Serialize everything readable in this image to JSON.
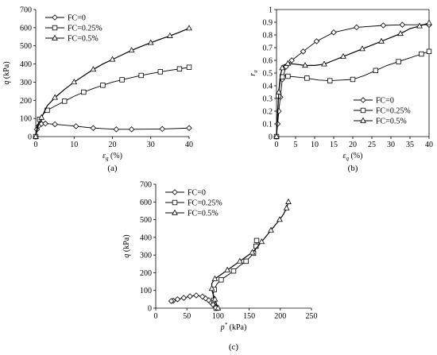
{
  "chart_data": [
    {
      "type": "line",
      "panel_label": "(a)",
      "xlabel_sym": "ε",
      "xlabel_sub": "q",
      "xlabel_unit": " (%)",
      "ylabel_sym": "q",
      "ylabel_unit": " (kPa)",
      "xlim": [
        0,
        40
      ],
      "ylim": [
        0,
        700
      ],
      "xticks": [
        "0",
        "10",
        "20",
        "30",
        "40"
      ],
      "yticks": [
        "0",
        "100",
        "200",
        "300",
        "400",
        "500",
        "600",
        "700"
      ],
      "grid": false,
      "legend_position": "top-left",
      "series": [
        {
          "name": "FC=0",
          "marker": "diamond",
          "x": [
            0,
            0.3,
            0.8,
            1.5,
            2.5,
            5,
            10.5,
            15,
            21,
            25,
            33,
            40
          ],
          "y": [
            0,
            40,
            60,
            70,
            72,
            68,
            57,
            47,
            40,
            40,
            42,
            47
          ]
        },
        {
          "name": "FC=0.25%",
          "marker": "square",
          "x": [
            0,
            0.3,
            1,
            2,
            3,
            5,
            7.5,
            10,
            12.5,
            15,
            17.5,
            20,
            22.5,
            25,
            27.5,
            30,
            32.5,
            35,
            37.5,
            40
          ],
          "y": [
            0,
            50,
            95,
            125,
            145,
            168,
            195,
            222,
            245,
            265,
            283,
            300,
            313,
            325,
            337,
            347,
            357,
            365,
            373,
            382
          ]
        },
        {
          "name": "FC=0.5%",
          "marker": "triangle",
          "x": [
            0,
            0.5,
            1.5,
            3,
            5,
            7.5,
            10,
            12.5,
            15,
            17.5,
            20,
            22.5,
            25,
            27.5,
            30,
            32.5,
            35,
            37.5,
            40
          ],
          "y": [
            0,
            50,
            105,
            170,
            215,
            260,
            300,
            335,
            370,
            400,
            425,
            450,
            475,
            497,
            517,
            537,
            555,
            575,
            597
          ]
        }
      ]
    },
    {
      "type": "line",
      "panel_label": "(b)",
      "xlabel_sym": "ε",
      "xlabel_sub": "q",
      "xlabel_unit": " (%)",
      "ylabel_sym": "r",
      "ylabel_sub": "u",
      "xlim": [
        0,
        40
      ],
      "ylim": [
        0,
        1
      ],
      "xticks": [
        "0",
        "5",
        "10",
        "15",
        "20",
        "25",
        "30",
        "35",
        "40"
      ],
      "yticks": [
        "0",
        "0.1",
        "0.2",
        "0.3",
        "0.4",
        "0.5",
        "0.6",
        "0.7",
        "0.8",
        "0.9",
        "1"
      ],
      "grid": false,
      "legend_position": "bottom-right",
      "series": [
        {
          "name": "FC=0",
          "marker": "diamond",
          "x": [
            0,
            0.3,
            0.6,
            1,
            1.5,
            2.5,
            4,
            7,
            10.5,
            15,
            21,
            28,
            33,
            40
          ],
          "y": [
            0,
            0.1,
            0.2,
            0.31,
            0.45,
            0.55,
            0.6,
            0.67,
            0.75,
            0.82,
            0.86,
            0.875,
            0.88,
            0.88
          ]
        },
        {
          "name": "FC=0.25%",
          "marker": "square",
          "x": [
            0,
            0.2,
            0.5,
            1,
            1.5,
            2,
            3,
            5,
            8,
            11,
            14,
            17,
            20,
            23,
            26,
            29,
            32,
            35,
            38,
            40
          ],
          "y": [
            0,
            0.13,
            0.32,
            0.44,
            0.47,
            0.48,
            0.475,
            0.47,
            0.46,
            0.445,
            0.44,
            0.445,
            0.45,
            0.48,
            0.52,
            0.56,
            0.59,
            0.62,
            0.65,
            0.67
          ]
        },
        {
          "name": "FC=0.5%",
          "marker": "triangle",
          "x": [
            0,
            0.3,
            0.6,
            1,
            1.5,
            2,
            3,
            5,
            7.5,
            10,
            12.5,
            15,
            17.5,
            20,
            22.5,
            25,
            27.5,
            30,
            32.5,
            35,
            37.5,
            40
          ],
          "y": [
            0,
            0.18,
            0.35,
            0.48,
            0.54,
            0.565,
            0.575,
            0.57,
            0.56,
            0.56,
            0.57,
            0.6,
            0.63,
            0.66,
            0.69,
            0.72,
            0.75,
            0.78,
            0.81,
            0.85,
            0.87,
            0.895
          ]
        }
      ]
    },
    {
      "type": "line",
      "panel_label": "(c)",
      "xlabel_sym": "p",
      "xlabel_sup": "*",
      "xlabel_unit": " (kPa)",
      "ylabel_sym": "q",
      "ylabel_unit": " (kPa)",
      "xlim": [
        0,
        250
      ],
      "ylim": [
        0,
        700
      ],
      "xticks": [
        "0",
        "50",
        "100",
        "150",
        "200",
        "250"
      ],
      "yticks": [
        "0",
        "100",
        "200",
        "300",
        "400",
        "500",
        "600",
        "700"
      ],
      "grid": false,
      "legend_position": "top-left",
      "series": [
        {
          "name": "FC=0",
          "marker": "diamond",
          "x": [
            97,
            95,
            92,
            88,
            85,
            80,
            75,
            65,
            55,
            45,
            35,
            28,
            25
          ],
          "y": [
            0,
            10,
            20,
            35,
            45,
            55,
            65,
            72,
            67,
            58,
            50,
            42,
            40
          ]
        },
        {
          "name": "FC=0.25%",
          "marker": "square",
          "x": [
            97,
            95,
            93,
            92,
            94,
            98,
            105,
            115,
            125,
            135,
            145,
            152,
            157,
            160,
            161,
            162,
            162
          ],
          "y": [
            0,
            20,
            45,
            75,
            105,
            135,
            160,
            185,
            210,
            240,
            265,
            290,
            310,
            330,
            350,
            365,
            382
          ]
        },
        {
          "name": "FC=0.5%",
          "marker": "triangle",
          "x": [
            100,
            98,
            95,
            92,
            90,
            90,
            95,
            105,
            115,
            125,
            135,
            145,
            155,
            163,
            170,
            177,
            185,
            192,
            199,
            205,
            210,
            213
          ],
          "y": [
            0,
            20,
            50,
            80,
            110,
            140,
            165,
            190,
            215,
            240,
            265,
            290,
            315,
            345,
            375,
            405,
            440,
            470,
            500,
            530,
            565,
            600
          ]
        }
      ]
    }
  ]
}
